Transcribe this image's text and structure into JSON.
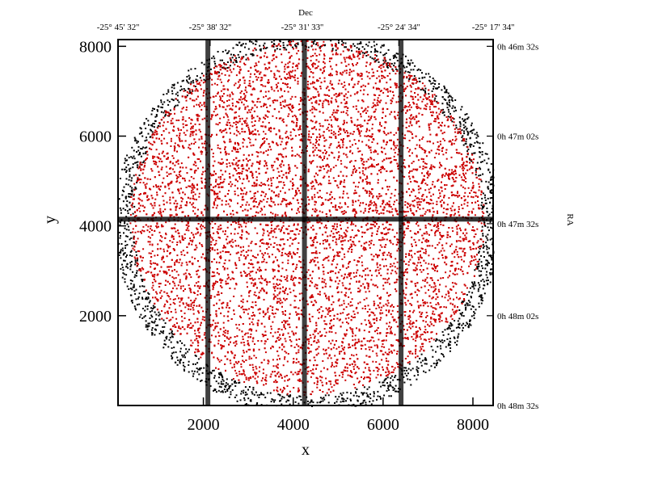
{
  "chart_data": {
    "type": "scatter",
    "xlabel": "x",
    "ylabel": "y",
    "top_axis_label": "Dec",
    "right_axis_label": "RA",
    "xlim": [
      100,
      8450
    ],
    "ylim": [
      0,
      8150
    ],
    "x_ticks": [
      2000,
      4000,
      6000,
      8000
    ],
    "y_ticks": [
      2000,
      4000,
      6000,
      8000
    ],
    "top_ticks": [
      {
        "x": 0,
        "label": "-25° 45' 32''"
      },
      {
        "x": 2150,
        "label": "-25° 38' 32''"
      },
      {
        "x": 4200,
        "label": "-25° 31' 33''"
      },
      {
        "x": 6350,
        "label": "-25° 24' 34''"
      },
      {
        "x": 8450,
        "label": "-25° 17' 34''"
      }
    ],
    "right_ticks": [
      {
        "y": 8000,
        "label": "0h 46m 32s"
      },
      {
        "y": 6000,
        "label": "0h 47m 02s"
      },
      {
        "y": 4050,
        "label": "0h 47m 32s"
      },
      {
        "y": 2000,
        "label": "0h 48m 02s"
      },
      {
        "y": 0,
        "label": "0h 48m 32s"
      }
    ],
    "series": [
      {
        "color": "#000000",
        "center": [
          4300,
          4100
        ],
        "radius": 4300
      },
      {
        "color": "#cc0000",
        "center": [
          4300,
          4200
        ],
        "radius": 3950
      }
    ],
    "ccd_gaps_x": [
      2100,
      4250,
      6400
    ],
    "ccd_gap_y": 4150,
    "grid": false
  }
}
